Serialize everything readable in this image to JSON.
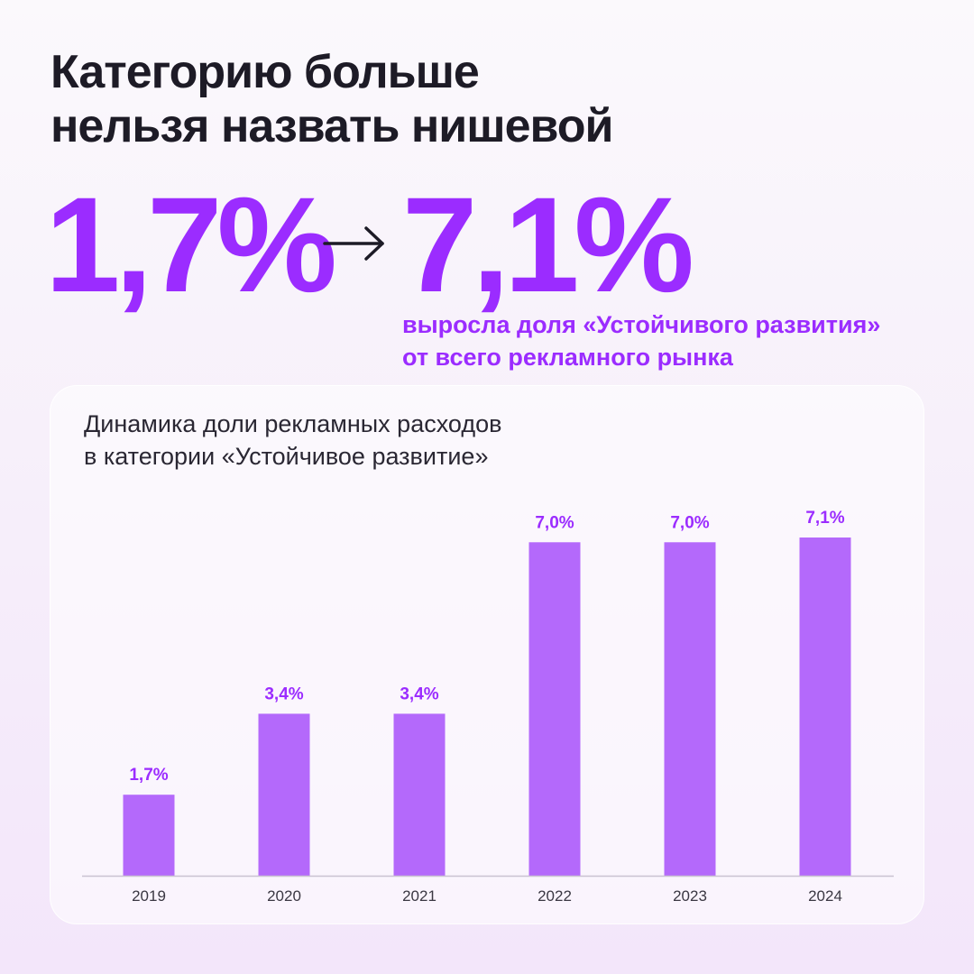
{
  "headline": {
    "line1": "Категорию больше",
    "line2": "нельзя назвать нишевой"
  },
  "highlight": {
    "from_value": "1,7%",
    "to_value": "7,1%",
    "arrow_icon": "arrow-right-icon",
    "caption_line1": "выросла доля «Устойчивого развития»",
    "caption_line2": "от всего рекламного рынка"
  },
  "colors": {
    "accent": "#9b2cff",
    "bar": "#b469fb",
    "bar_label": "#9b2cff",
    "text": "#1d1b26"
  },
  "chart_data": {
    "type": "bar",
    "title_line1": "Динамика доли рекламных расходов",
    "title_line2": "в категории «Устойчивое развитие»",
    "categories": [
      "2019",
      "2020",
      "2021",
      "2022",
      "2023",
      "2024"
    ],
    "values": [
      1.7,
      3.4,
      3.4,
      7.0,
      7.0,
      7.1
    ],
    "value_labels": [
      "1,7%",
      "3,4%",
      "3,4%",
      "7,0%",
      "7,0%",
      "7,1%"
    ],
    "unit": "%",
    "ylim": [
      0,
      7.1
    ],
    "grid": false,
    "legend": "none"
  }
}
